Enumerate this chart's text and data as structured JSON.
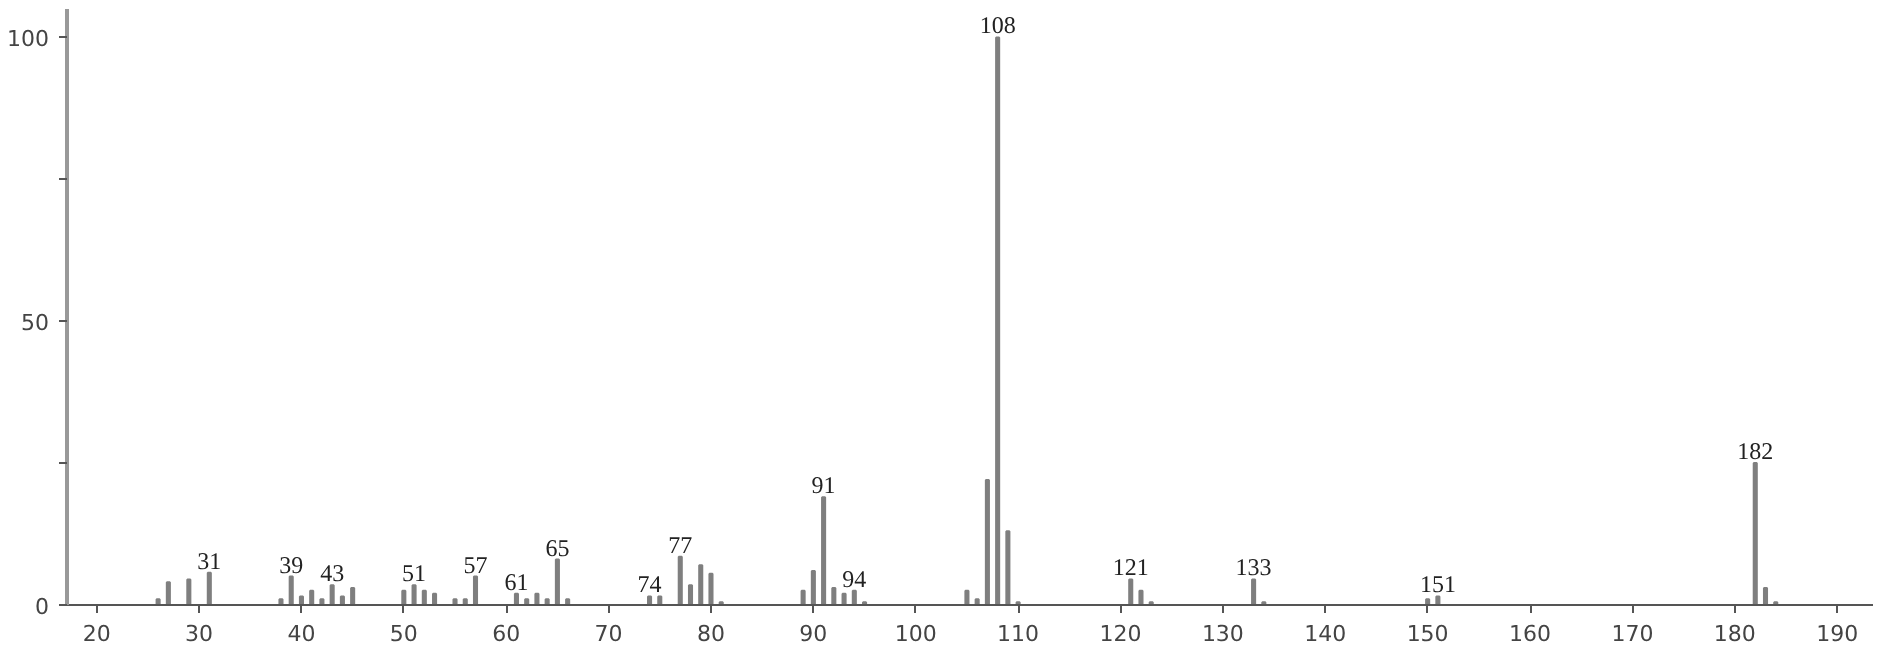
{
  "chart_data": {
    "type": "bar",
    "color": "#7f7f7f",
    "x": [
      26,
      27,
      29,
      31,
      38,
      39,
      40,
      41,
      42,
      43,
      44,
      45,
      50,
      51,
      52,
      53,
      55,
      56,
      57,
      61,
      62,
      63,
      64,
      65,
      66,
      74,
      75,
      77,
      78,
      79,
      80,
      81,
      89,
      90,
      91,
      92,
      93,
      94,
      95,
      105,
      106,
      107,
      108,
      109,
      110,
      121,
      122,
      123,
      133,
      134,
      150,
      151,
      182,
      183,
      184
    ],
    "values": [
      1,
      4,
      4.5,
      5.7,
      1,
      5,
      1.5,
      2.5,
      1,
      3.5,
      1.5,
      3,
      2.5,
      3.5,
      2.5,
      2,
      1,
      1,
      5,
      2,
      1,
      2,
      1,
      8,
      1,
      1.5,
      1.5,
      8.5,
      3.5,
      7,
      5.5,
      0.5,
      2.5,
      6,
      19,
      3,
      2,
      2.5,
      0.5,
      2.5,
      1,
      22,
      100,
      13,
      0.5,
      4.5,
      2.5,
      0.5,
      4.5,
      0.5,
      1,
      1.5,
      25,
      3,
      0.5
    ],
    "annotations": [
      {
        "text": "31",
        "x": 31,
        "y": 5.7
      },
      {
        "text": "39",
        "x": 39,
        "y": 5
      },
      {
        "text": "43",
        "x": 43,
        "y": 3.5
      },
      {
        "text": "51",
        "x": 51,
        "y": 3.5
      },
      {
        "text": "57",
        "x": 57,
        "y": 5
      },
      {
        "text": "61",
        "x": 61,
        "y": 2
      },
      {
        "text": "65",
        "x": 65,
        "y": 8
      },
      {
        "text": "74",
        "x": 74,
        "y": 1.5
      },
      {
        "text": "77",
        "x": 77,
        "y": 8.5
      },
      {
        "text": "91",
        "x": 91,
        "y": 19
      },
      {
        "text": "94",
        "x": 94,
        "y": 2.5
      },
      {
        "text": "108",
        "x": 108,
        "y": 100
      },
      {
        "text": "121",
        "x": 121,
        "y": 4.5
      },
      {
        "text": "133",
        "x": 133,
        "y": 4.5
      },
      {
        "text": "151",
        "x": 151,
        "y": 1.5
      },
      {
        "text": "182",
        "x": 182,
        "y": 25
      }
    ],
    "xlim": [
      17.1,
      193.5
    ],
    "ylim": [
      0,
      105
    ],
    "xticks": [
      20,
      30,
      40,
      50,
      60,
      70,
      80,
      90,
      100,
      110,
      120,
      130,
      140,
      150,
      160,
      170,
      180,
      190
    ],
    "yticks": [
      0,
      {
        "value": 25,
        "label": null
      },
      50,
      {
        "value": 75,
        "label": null
      },
      100
    ],
    "grid": false
  }
}
